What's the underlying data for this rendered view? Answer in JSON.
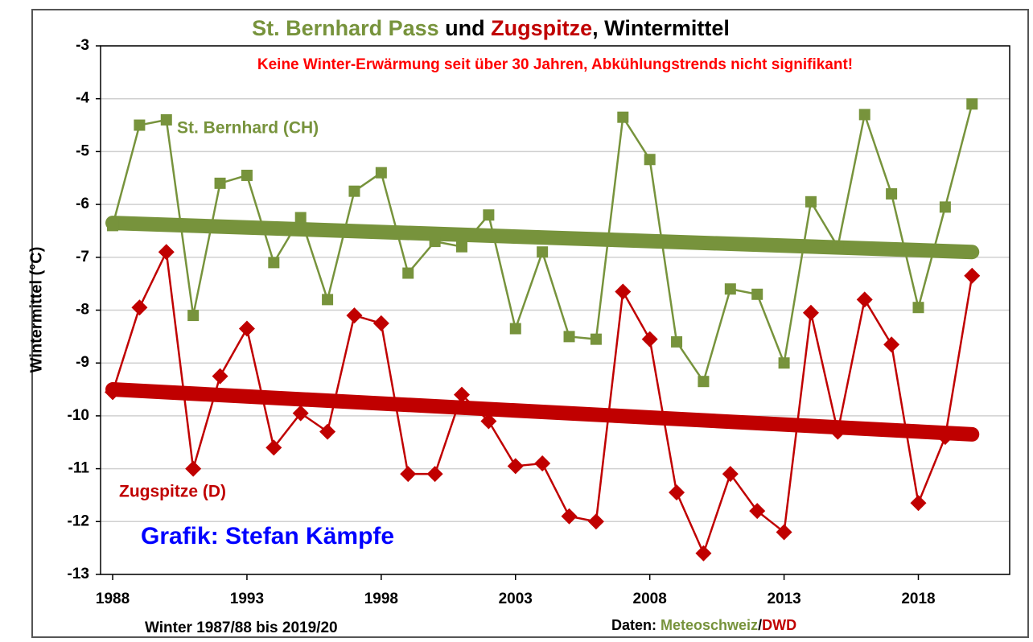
{
  "chart_data": {
    "type": "line",
    "title_parts": [
      {
        "text": "St. Bernhard Pass",
        "color": "#77933c"
      },
      {
        "text": " und ",
        "color": "#000000"
      },
      {
        "text": "Zugspitze",
        "color": "#c00000"
      },
      {
        "text": ", Wintermittel",
        "color": "#000000"
      }
    ],
    "subtitle": "Keine Winter-Erwärmung seit über 30 Jahren, Abkühlungstrends nicht signifikant!",
    "subtitle_color": "#ff0000",
    "ylabel": "Wintermittel (°C)",
    "xlabel": "Winter 1987/88 bis 2019/20",
    "credit": {
      "text": "Grafik: Stefan Kämpfe",
      "color": "#0000ff"
    },
    "source_parts": [
      {
        "text": "Daten: ",
        "color": "#000000"
      },
      {
        "text": "Meteoschweiz",
        "color": "#77933c"
      },
      {
        "text": "/",
        "color": "#000000"
      },
      {
        "text": "DWD",
        "color": "#c00000"
      }
    ],
    "x": [
      1988,
      1989,
      1990,
      1991,
      1992,
      1993,
      1994,
      1995,
      1996,
      1997,
      1998,
      1999,
      2000,
      2001,
      2002,
      2003,
      2004,
      2005,
      2006,
      2007,
      2008,
      2009,
      2010,
      2011,
      2012,
      2013,
      2014,
      2015,
      2016,
      2017,
      2018,
      2019,
      2020
    ],
    "series": [
      {
        "name": "St. Bernhard (CH)",
        "color": "#77933c",
        "marker": "square",
        "values": [
          -6.4,
          -4.5,
          -4.4,
          -8.1,
          -5.6,
          -5.45,
          -7.1,
          -6.25,
          -7.8,
          -5.75,
          -5.4,
          -7.3,
          -6.7,
          -6.8,
          -6.2,
          -8.35,
          -6.9,
          -8.5,
          -8.55,
          -4.35,
          -5.15,
          -8.6,
          -9.35,
          -7.6,
          -7.7,
          -9.0,
          -5.95,
          -6.8,
          -4.3,
          -5.8,
          -7.95,
          -6.05,
          -4.1
        ]
      },
      {
        "name": "Zugspitze (D)",
        "color": "#c00000",
        "marker": "diamond",
        "values": [
          -9.55,
          -7.95,
          -6.9,
          -11.0,
          -9.25,
          -8.35,
          -10.6,
          -9.95,
          -10.3,
          -8.1,
          -8.25,
          -11.1,
          -11.1,
          -9.6,
          -10.1,
          -10.95,
          -10.9,
          -11.9,
          -12.0,
          -7.65,
          -8.55,
          -11.45,
          -12.6,
          -11.1,
          -11.8,
          -12.2,
          -8.05,
          -10.3,
          -7.8,
          -8.65,
          -11.65,
          -10.4,
          -7.35
        ]
      }
    ],
    "trends": [
      {
        "color": "#77933c",
        "x": [
          1988,
          2020
        ],
        "values": [
          -6.35,
          -6.9
        ]
      },
      {
        "color": "#c00000",
        "x": [
          1988,
          2020
        ],
        "values": [
          -9.5,
          -10.35
        ]
      }
    ],
    "xlim": [
      1987.55,
      2021.4
    ],
    "xticks": [
      1988,
      1993,
      1998,
      2003,
      2008,
      2013,
      2018
    ],
    "ylim": [
      -13,
      -3
    ],
    "yticks": [
      -3,
      -4,
      -5,
      -6,
      -7,
      -8,
      -9,
      -10,
      -11,
      -12,
      -13
    ],
    "grid": true
  }
}
